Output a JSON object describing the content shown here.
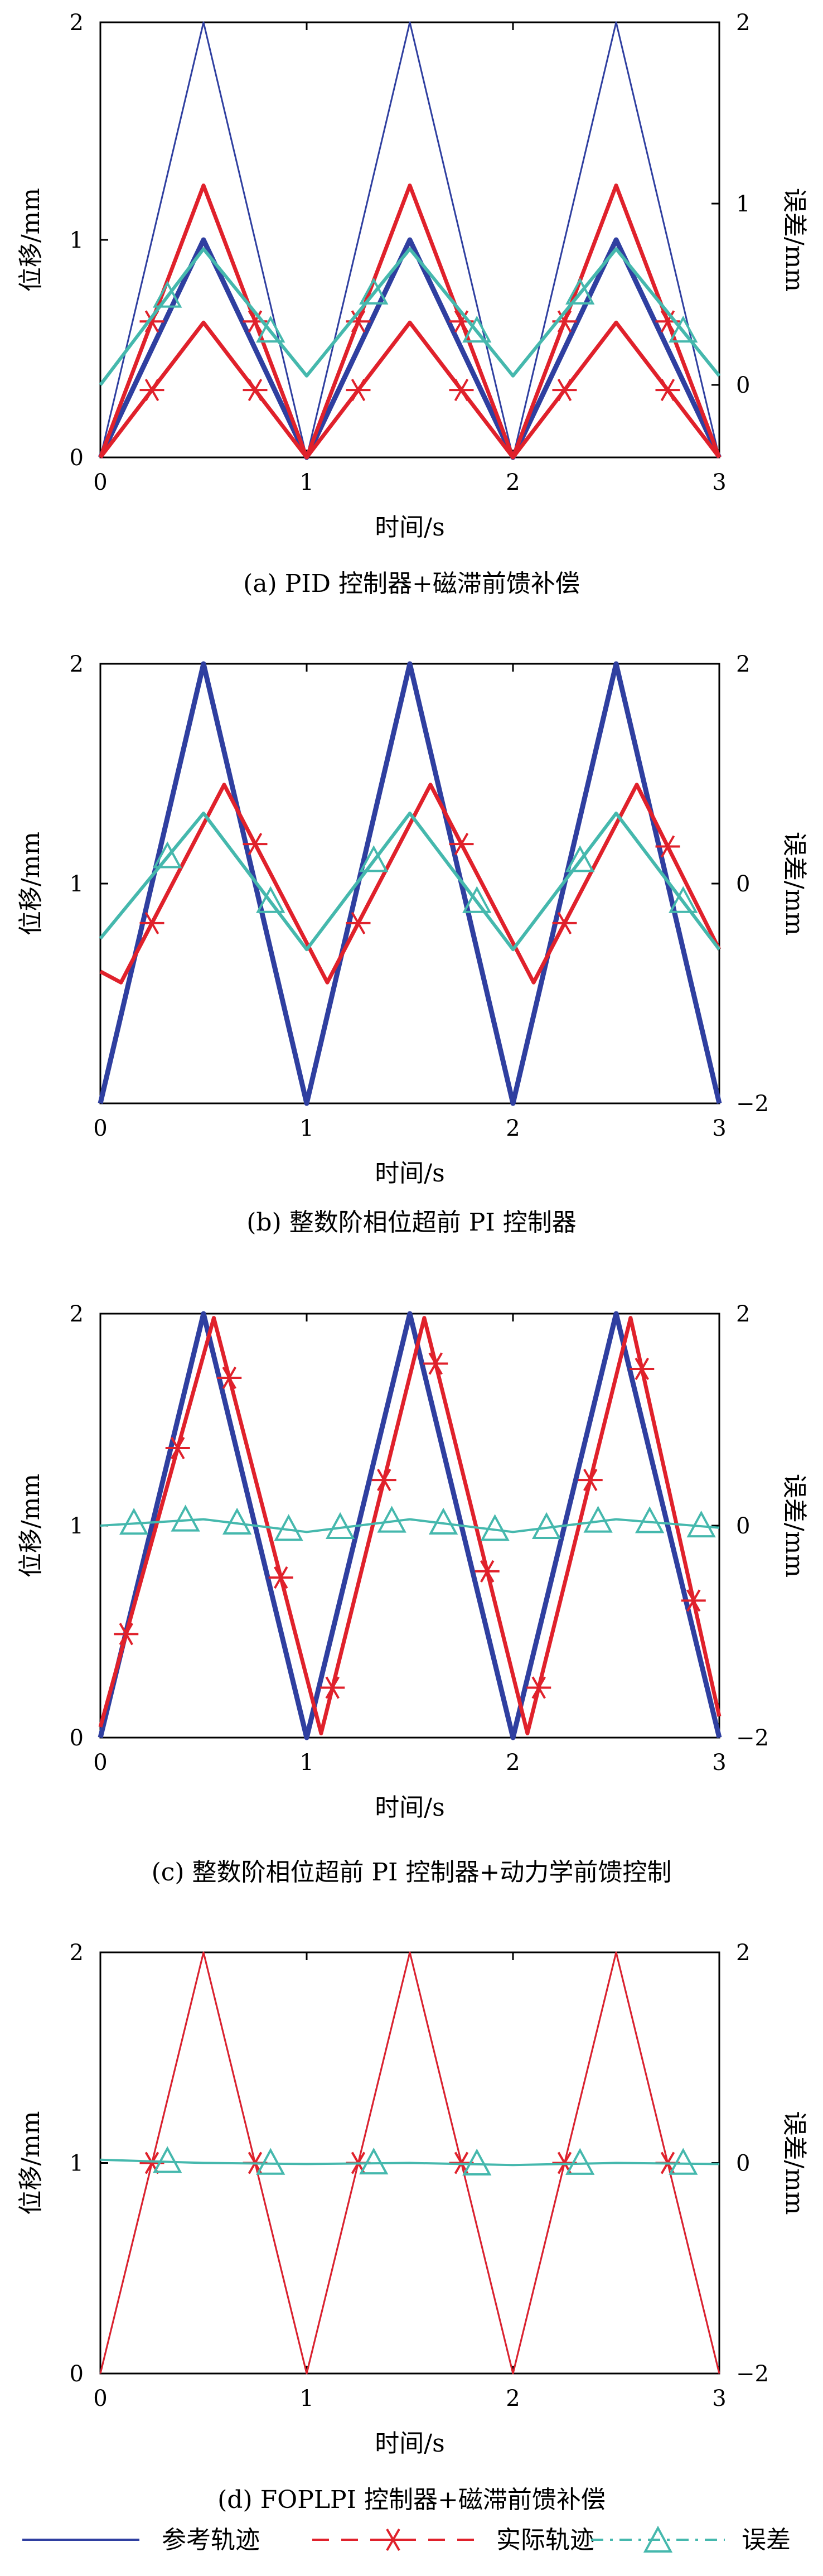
{
  "colors": {
    "reference": "#2f3fa0",
    "actual": "#e0212b",
    "error": "#45b8ad",
    "axis": "#000000"
  },
  "legend": [
    {
      "key": "reference",
      "label": "参考轨迹",
      "style": "solid",
      "marker": ""
    },
    {
      "key": "actual",
      "label": "实际轨迹",
      "style": "dashed",
      "marker": "star"
    },
    {
      "key": "error",
      "label": "误差",
      "style": "dashdot",
      "marker": "triangle"
    }
  ],
  "chart_data": [
    {
      "type": "line",
      "caption": "(a) PID 控制器+磁滞前馈补偿",
      "xlabel": "时间/s",
      "ylabel": "位移/mm",
      "y2label": "误差/mm",
      "xlim": [
        0,
        3
      ],
      "ylim": [
        0,
        2
      ],
      "y2lim": [
        -0.4,
        2
      ],
      "xticks": [
        "0",
        "1",
        "2",
        "3"
      ],
      "yticks": [
        "0",
        "1",
        "2"
      ],
      "y2ticks": [
        "0",
        "1",
        "2"
      ],
      "series": [
        {
          "key": "reference",
          "axis": "left",
          "x": [
            0,
            0.5,
            1,
            1.5,
            2,
            2.5,
            3
          ],
          "y": [
            0,
            2,
            0,
            2,
            0,
            2,
            0
          ]
        },
        {
          "key": "reference",
          "axis": "left",
          "x": [
            0,
            0.5,
            1,
            1.5,
            2,
            2.5,
            3
          ],
          "y": [
            0,
            1,
            0,
            1,
            0,
            1,
            0
          ]
        },
        {
          "key": "actual",
          "axis": "left",
          "x": [
            0,
            0.5,
            1,
            1.5,
            2,
            2.5,
            3
          ],
          "y": [
            0,
            1.25,
            0,
            1.25,
            0,
            1.25,
            0
          ]
        },
        {
          "key": "actual",
          "axis": "left",
          "x": [
            0,
            0.5,
            1,
            1.5,
            2,
            2.5,
            3
          ],
          "y": [
            0,
            0.62,
            0,
            0.62,
            0,
            0.62,
            0
          ]
        },
        {
          "key": "error",
          "axis": "right",
          "x": [
            0,
            0.5,
            1,
            1.5,
            2,
            2.5,
            3
          ],
          "y": [
            0,
            0.75,
            0.05,
            0.75,
            0.05,
            0.75,
            0.05
          ]
        }
      ]
    },
    {
      "type": "line",
      "caption": "(b) 整数阶相位超前 PI 控制器",
      "xlabel": "时间/s",
      "ylabel": "位移/mm",
      "y2label": "误差/mm",
      "xlim": [
        0,
        3
      ],
      "ylim": [
        0,
        2
      ],
      "y2lim": [
        -2,
        2
      ],
      "xticks": [
        "0",
        "1",
        "2",
        "3"
      ],
      "yticks": [
        "1",
        "2"
      ],
      "y2ticks": [
        "−2",
        "0",
        "2"
      ],
      "series": [
        {
          "key": "reference",
          "axis": "left",
          "x": [
            0,
            0.5,
            1,
            1.5,
            2,
            2.5,
            3
          ],
          "y": [
            0,
            2,
            0,
            2,
            0,
            2,
            0
          ]
        },
        {
          "key": "actual",
          "axis": "left",
          "x": [
            0,
            0.1,
            0.6,
            1.1,
            1.6,
            2.1,
            2.6,
            3.0
          ],
          "y": [
            0.6,
            0.55,
            1.45,
            0.55,
            1.45,
            0.55,
            1.45,
            0.7
          ]
        },
        {
          "key": "error",
          "axis": "left",
          "x": [
            0,
            0.5,
            1.0,
            1.5,
            2.0,
            2.5,
            3.0
          ],
          "y": [
            0.75,
            1.32,
            0.7,
            1.32,
            0.7,
            1.32,
            0.7
          ]
        }
      ]
    },
    {
      "type": "line",
      "caption": "(c) 整数阶相位超前 PI 控制器+动力学前馈控制",
      "xlabel": "时间/s",
      "ylabel": "位移/mm",
      "y2label": "误差/mm",
      "xlim": [
        0,
        3
      ],
      "ylim": [
        0,
        2
      ],
      "y2lim": [
        -2,
        2
      ],
      "xticks": [
        "0",
        "1",
        "2",
        "3"
      ],
      "yticks": [
        "0",
        "1",
        "2"
      ],
      "y2ticks": [
        "−2",
        "0",
        "2"
      ],
      "series": [
        {
          "key": "reference",
          "axis": "left",
          "x": [
            0,
            0.5,
            1,
            1.5,
            2,
            2.5,
            3
          ],
          "y": [
            0,
            2,
            0,
            2,
            0,
            2,
            0
          ]
        },
        {
          "key": "actual",
          "axis": "left",
          "x": [
            0,
            0.55,
            1.07,
            1.57,
            2.07,
            2.57,
            3
          ],
          "y": [
            0.05,
            1.98,
            0.02,
            1.98,
            0.02,
            1.98,
            0.1
          ]
        },
        {
          "key": "error",
          "axis": "right",
          "x": [
            0,
            0.5,
            1,
            1.5,
            2,
            2.5,
            3
          ],
          "y": [
            0,
            0.06,
            -0.06,
            0.06,
            -0.06,
            0.06,
            -0.02
          ]
        }
      ]
    },
    {
      "type": "line",
      "caption": "(d) FOPLPI 控制器+磁滞前馈补偿",
      "xlabel": "时间/s",
      "ylabel": "位移/mm",
      "y2label": "误差/mm",
      "xlim": [
        0,
        3
      ],
      "ylim": [
        0,
        2
      ],
      "y2lim": [
        -2,
        2
      ],
      "xticks": [
        "0",
        "1",
        "2",
        "3"
      ],
      "yticks": [
        "0",
        "1",
        "2"
      ],
      "y2ticks": [
        "−2",
        "0",
        "2"
      ],
      "series": [
        {
          "key": "reference",
          "axis": "left",
          "x": [
            0,
            0.5,
            1,
            1.5,
            2,
            2.5,
            3
          ],
          "y": [
            0,
            2,
            0,
            2,
            0,
            2,
            0
          ]
        },
        {
          "key": "actual",
          "axis": "left",
          "x": [
            0,
            0.5,
            1,
            1.5,
            2,
            2.5,
            3
          ],
          "y": [
            0,
            2,
            0,
            2,
            0,
            2,
            0
          ]
        },
        {
          "key": "error",
          "axis": "right",
          "x": [
            0,
            0.5,
            1,
            1.5,
            2,
            2.5,
            3
          ],
          "y": [
            0.03,
            0.0,
            -0.01,
            0.0,
            -0.02,
            0.0,
            -0.01
          ]
        }
      ]
    }
  ]
}
